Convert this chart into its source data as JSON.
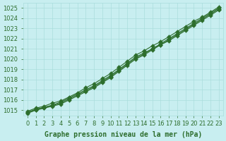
{
  "bg_color": "#c8eef0",
  "grid_color": "#aadddd",
  "line_color": "#2d6e2d",
  "marker": "D",
  "marker_size": 3,
  "xlabel": "Graphe pression niveau de la mer (hPa)",
  "xlabel_color": "#2d6e2d",
  "xlabel_fontsize": 7,
  "tick_color": "#2d6e2d",
  "tick_fontsize": 6,
  "ylim": [
    1014.5,
    1025.5
  ],
  "xlim": [
    -0.5,
    23.5
  ],
  "yticks": [
    1015,
    1016,
    1017,
    1018,
    1019,
    1020,
    1021,
    1022,
    1023,
    1024,
    1025
  ],
  "xticks": [
    0,
    1,
    2,
    3,
    4,
    5,
    6,
    7,
    8,
    9,
    10,
    11,
    12,
    13,
    14,
    15,
    16,
    17,
    18,
    19,
    20,
    21,
    22,
    23
  ],
  "series": [
    [
      1014.8,
      1015.1,
      1015.3,
      1015.5,
      1015.8,
      1016.2,
      1016.6,
      1017.0,
      1017.4,
      1017.9,
      1018.4,
      1019.0,
      1019.6,
      1020.2,
      1020.6,
      1021.0,
      1021.5,
      1022.0,
      1022.5,
      1023.0,
      1023.5,
      1024.0,
      1024.5,
      1025.0
    ],
    [
      1014.9,
      1015.2,
      1015.4,
      1015.7,
      1015.9,
      1016.3,
      1016.7,
      1017.2,
      1017.6,
      1018.1,
      1018.6,
      1019.2,
      1019.8,
      1020.4,
      1020.8,
      1021.3,
      1021.7,
      1022.2,
      1022.7,
      1023.2,
      1023.7,
      1024.1,
      1024.6,
      1025.1
    ],
    [
      1014.7,
      1015.0,
      1015.2,
      1015.4,
      1015.6,
      1016.0,
      1016.4,
      1016.8,
      1017.2,
      1017.7,
      1018.2,
      1018.8,
      1019.4,
      1020.0,
      1020.4,
      1020.9,
      1021.4,
      1021.8,
      1022.3,
      1022.8,
      1023.3,
      1023.8,
      1024.3,
      1024.8
    ],
    [
      1014.75,
      1015.05,
      1015.25,
      1015.45,
      1015.7,
      1016.1,
      1016.5,
      1016.9,
      1017.3,
      1017.8,
      1018.3,
      1018.9,
      1019.5,
      1020.1,
      1020.5,
      1021.0,
      1021.4,
      1021.9,
      1022.4,
      1022.9,
      1023.4,
      1023.9,
      1024.4,
      1024.9
    ]
  ]
}
